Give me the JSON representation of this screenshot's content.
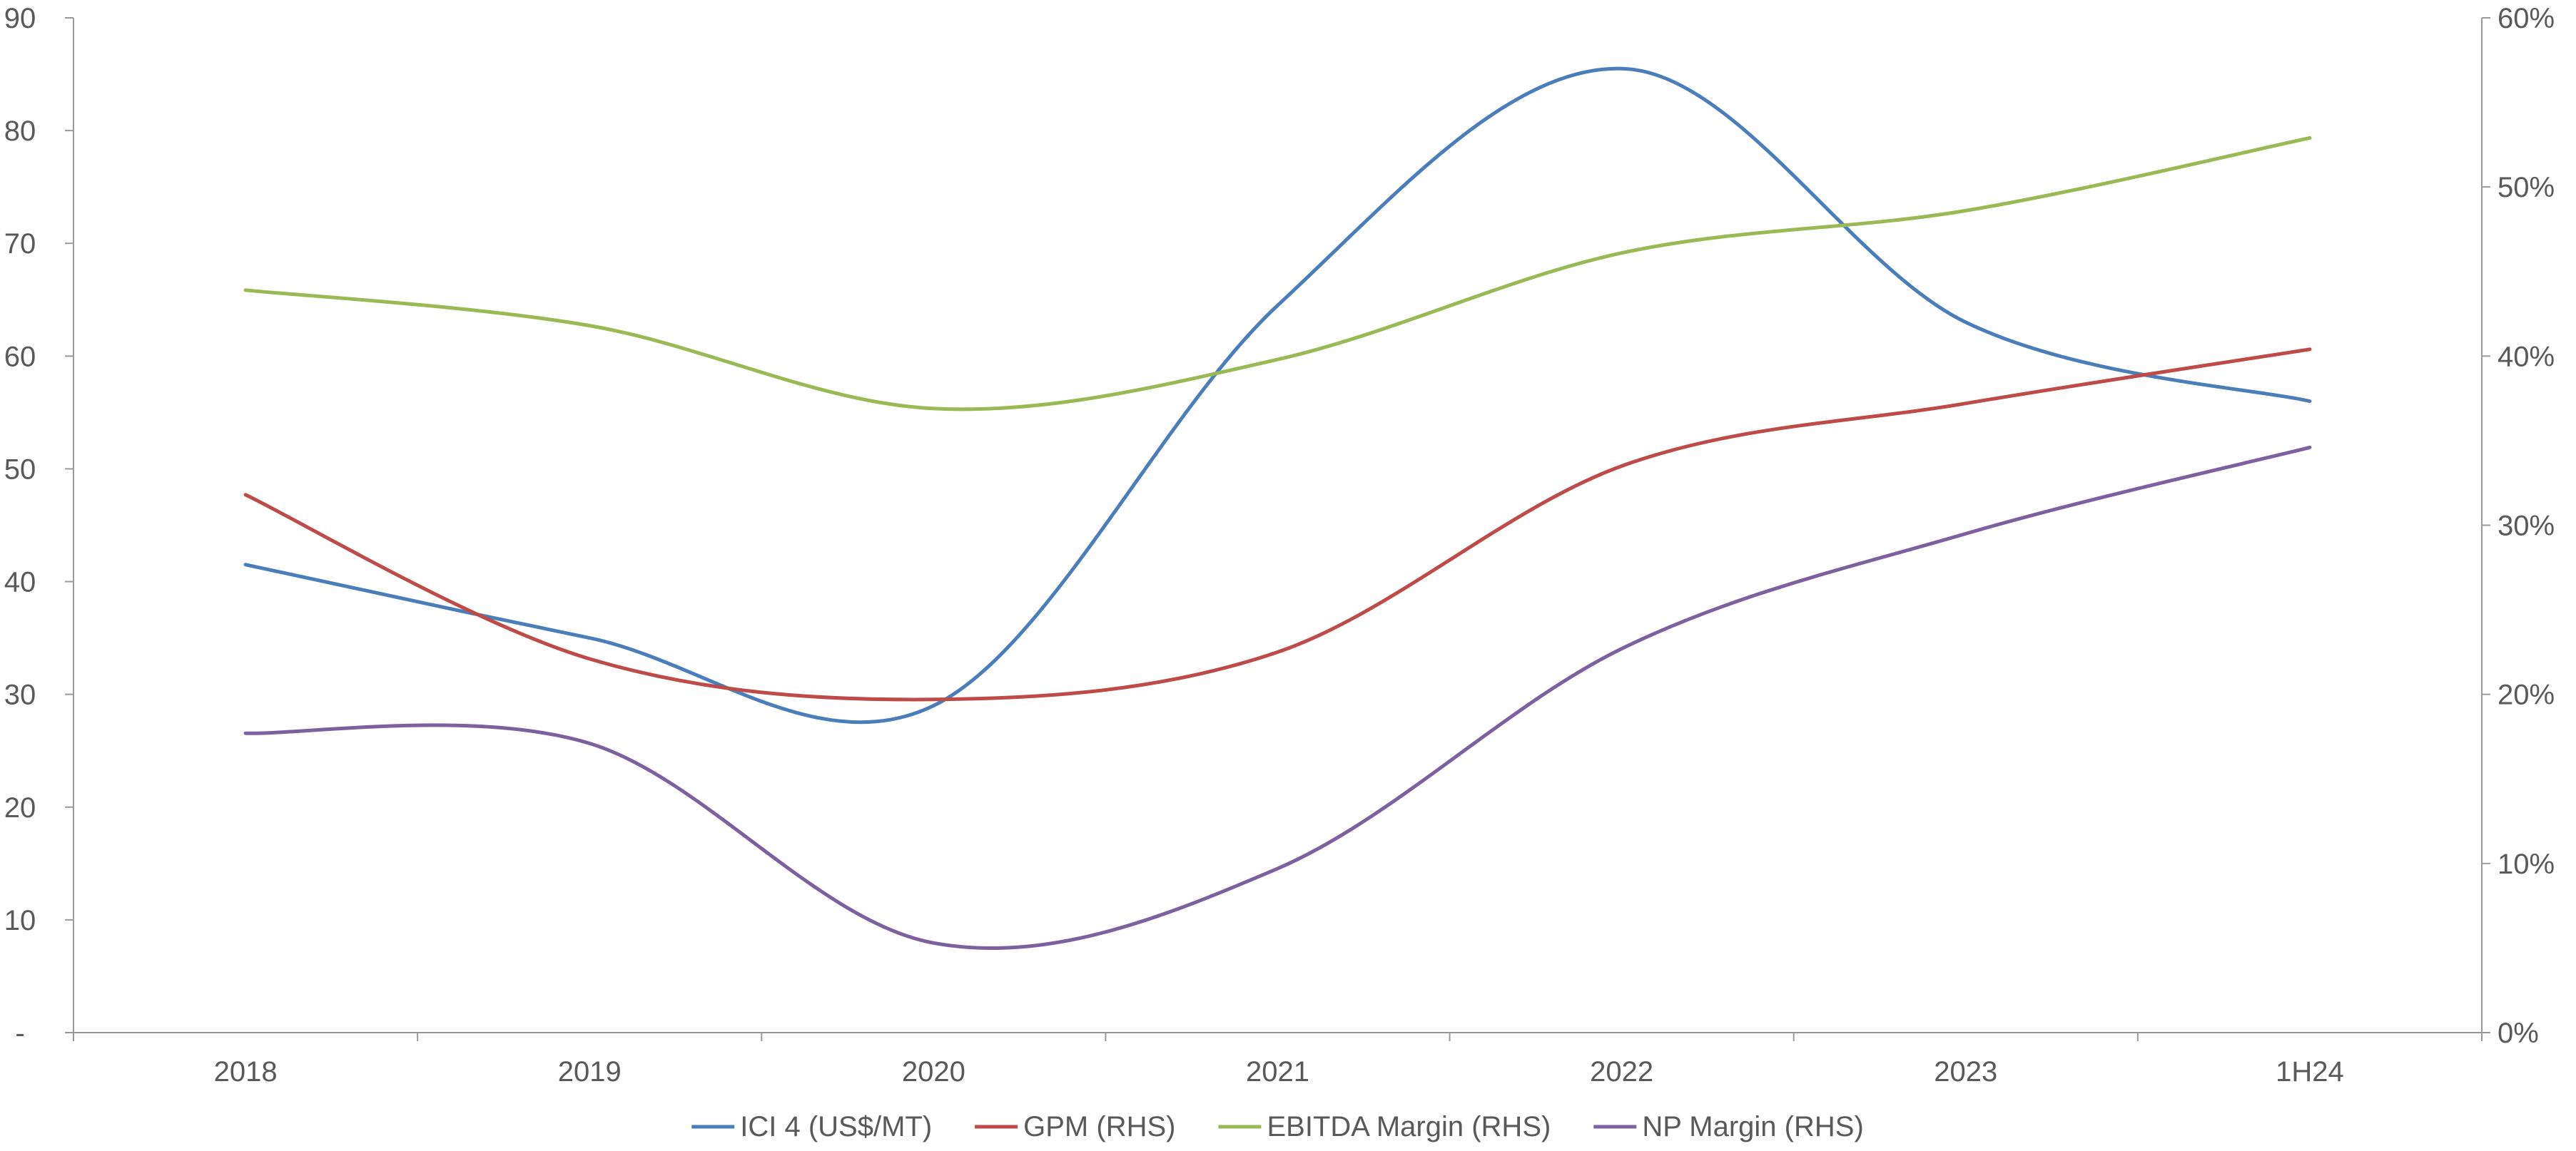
{
  "chart_data": {
    "type": "line",
    "smooth": true,
    "categories": [
      "2018",
      "2019",
      "2020",
      "2021",
      "2022",
      "2023",
      "1H24"
    ],
    "series": [
      {
        "name": "ICI 4 (US$/MT)",
        "axis": "left",
        "color": "#4a7ebb",
        "values": [
          41.5,
          35.0,
          29.0,
          64.5,
          85.5,
          63.0,
          56.0
        ]
      },
      {
        "name": "GPM (RHS)",
        "axis": "right",
        "color": "#be4b48",
        "values": [
          0.318,
          0.221,
          0.197,
          0.225,
          0.335,
          0.372,
          0.404
        ]
      },
      {
        "name": "EBITDA Margin (RHS)",
        "axis": "right",
        "color": "#98b954",
        "values": [
          0.439,
          0.418,
          0.369,
          0.398,
          0.461,
          0.486,
          0.529
        ]
      },
      {
        "name": "NP Margin (RHS)",
        "axis": "right",
        "color": "#7d60a0",
        "values": [
          0.177,
          0.171,
          0.053,
          0.097,
          0.227,
          0.295,
          0.346
        ]
      }
    ],
    "y_left": {
      "min": 0,
      "max": 90,
      "step": 10,
      "tick_labels": [
        "-",
        "10",
        "20",
        "30",
        "40",
        "50",
        "60",
        "70",
        "80",
        "90"
      ]
    },
    "y_right": {
      "min": 0,
      "max": 0.6,
      "step": 0.1,
      "tick_labels": [
        "0%",
        "10%",
        "20%",
        "30%",
        "40%",
        "50%",
        "60%"
      ]
    },
    "grid": false,
    "legend": {
      "position": "bottom"
    },
    "title": "",
    "xlabel": "",
    "ylabel": ""
  }
}
